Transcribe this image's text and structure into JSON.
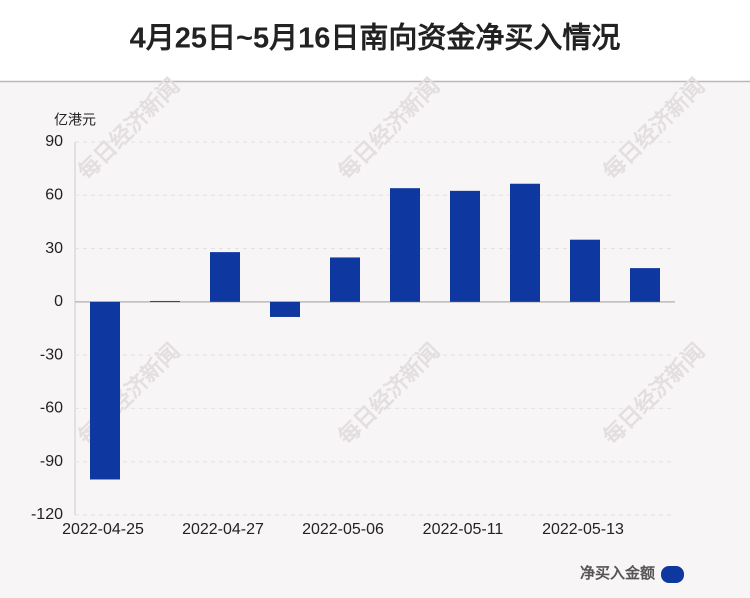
{
  "chart_data": {
    "type": "bar",
    "title": "4月25日~5月16日南向资金净买入情况",
    "unit_label": "亿港元",
    "watermark": "每日经济新闻",
    "categories": [
      "2022-04-25",
      null,
      "2022-04-27",
      null,
      "2022-05-06",
      null,
      "2022-05-11",
      null,
      "2022-05-13",
      null
    ],
    "series": [
      {
        "name": "净买入金额",
        "color": "#0e37a0",
        "values": [
          -100,
          0.5,
          28,
          -8.5,
          25,
          64,
          62.5,
          66.5,
          35,
          19
        ]
      }
    ],
    "ylim": [
      -120,
      90
    ],
    "yticks": [
      -120,
      -90,
      -60,
      -30,
      0,
      30,
      60,
      90
    ],
    "grid": true,
    "legend": "bottom-right"
  }
}
